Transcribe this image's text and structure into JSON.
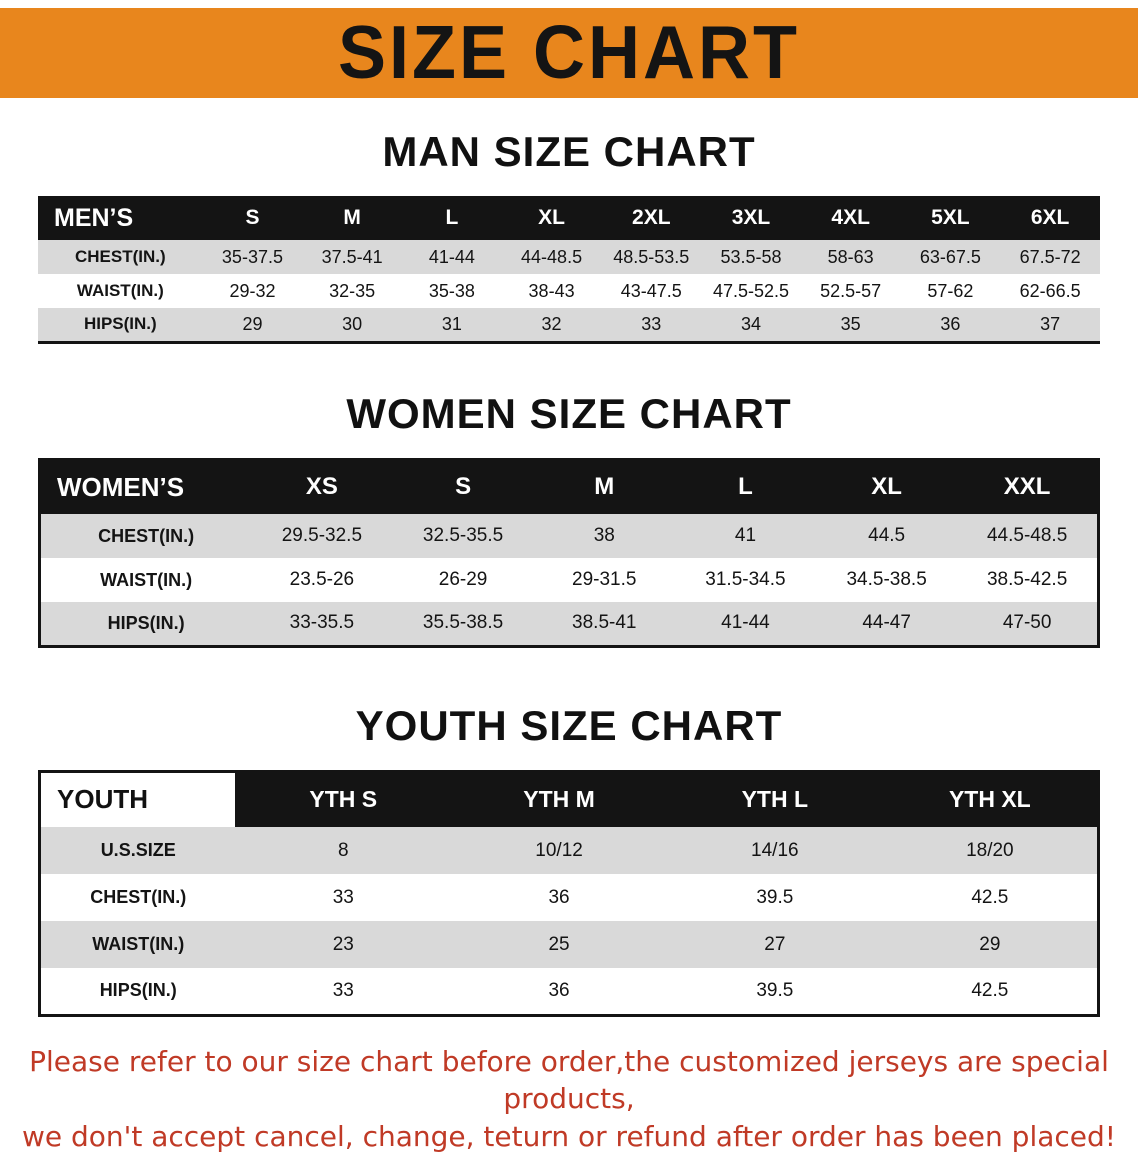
{
  "banner": {
    "title": "SIZE CHART"
  },
  "colors": {
    "banner_bg": "#E8861D",
    "header_bg": "#141414",
    "row_alt": "#D9D9D9",
    "disclaimer_text": "#C03A26"
  },
  "sections": [
    {
      "kind": "men",
      "title": "MAN SIZE CHART",
      "table": {
        "header": [
          "MEN’S",
          "S",
          "M",
          "L",
          "XL",
          "2XL",
          "3XL",
          "4XL",
          "5XL",
          "6XL"
        ],
        "rows": [
          {
            "label": "CHEST(IN.)",
            "values": [
              "35-37.5",
              "37.5-41",
              "41-44",
              "44-48.5",
              "48.5-53.5",
              "53.5-58",
              "58-63",
              "63-67.5",
              "67.5-72"
            ]
          },
          {
            "label": "WAIST(IN.)",
            "values": [
              "29-32",
              "32-35",
              "35-38",
              "38-43",
              "43-47.5",
              "47.5-52.5",
              "52.5-57",
              "57-62",
              "62-66.5"
            ]
          },
          {
            "label": "HIPS(IN.)",
            "values": [
              "29",
              "30",
              "31",
              "32",
              "33",
              "34",
              "35",
              "36",
              "37"
            ]
          }
        ]
      }
    },
    {
      "kind": "women",
      "title": "WOMEN SIZE CHART",
      "table": {
        "header": [
          "WOMEN’S",
          "XS",
          "S",
          "M",
          "L",
          "XL",
          "XXL"
        ],
        "rows": [
          {
            "label": "CHEST(IN.)",
            "values": [
              "29.5-32.5",
              "32.5-35.5",
              "38",
              "41",
              "44.5",
              "44.5-48.5"
            ]
          },
          {
            "label": "WAIST(IN.)",
            "values": [
              "23.5-26",
              "26-29",
              "29-31.5",
              "31.5-34.5",
              "34.5-38.5",
              "38.5-42.5"
            ]
          },
          {
            "label": "HIPS(IN.)",
            "values": [
              "33-35.5",
              "35.5-38.5",
              "38.5-41",
              "41-44",
              "44-47",
              "47-50"
            ]
          }
        ]
      }
    },
    {
      "kind": "youth",
      "title": "YOUTH SIZE CHART",
      "table": {
        "header": [
          "YOUTH",
          "YTH S",
          "YTH M",
          "YTH L",
          "YTH XL"
        ],
        "rows": [
          {
            "label": "U.S.SIZE",
            "values": [
              "8",
              "10/12",
              "14/16",
              "18/20"
            ]
          },
          {
            "label": "CHEST(IN.)",
            "values": [
              "33",
              "36",
              "39.5",
              "42.5"
            ]
          },
          {
            "label": "WAIST(IN.)",
            "values": [
              "23",
              "25",
              "27",
              "29"
            ]
          },
          {
            "label": "HIPS(IN.)",
            "values": [
              "33",
              "36",
              "39.5",
              "42.5"
            ]
          }
        ]
      }
    }
  ],
  "disclaimer": {
    "lines": [
      "Please refer to our size chart before order,the customized jerseys are special products,",
      "we don't accept cancel, change, teturn or refund after order has been placed!"
    ]
  }
}
